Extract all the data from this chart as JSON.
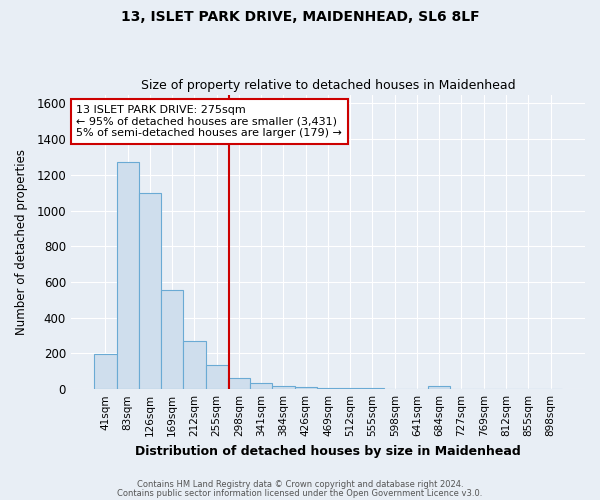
{
  "title1": "13, ISLET PARK DRIVE, MAIDENHEAD, SL6 8LF",
  "title2": "Size of property relative to detached houses in Maidenhead",
  "xlabel": "Distribution of detached houses by size in Maidenhead",
  "ylabel": "Number of detached properties",
  "footer1": "Contains HM Land Registry data © Crown copyright and database right 2024.",
  "footer2": "Contains public sector information licensed under the Open Government Licence v3.0.",
  "bar_labels": [
    "41sqm",
    "83sqm",
    "126sqm",
    "169sqm",
    "212sqm",
    "255sqm",
    "298sqm",
    "341sqm",
    "384sqm",
    "426sqm",
    "469sqm",
    "512sqm",
    "555sqm",
    "598sqm",
    "641sqm",
    "684sqm",
    "727sqm",
    "769sqm",
    "812sqm",
    "855sqm",
    "898sqm"
  ],
  "bar_values": [
    198,
    1270,
    1100,
    555,
    270,
    135,
    60,
    35,
    20,
    10,
    6,
    5,
    5,
    3,
    1,
    20,
    0,
    0,
    0,
    0,
    0
  ],
  "bar_color": "#cfdeed",
  "bar_edge_color": "#6aaad4",
  "bg_color": "#e8eef5",
  "grid_color": "#ffffff",
  "red_line_x": 5.57,
  "annotation_line1": "13 ISLET PARK DRIVE: 275sqm",
  "annotation_line2": "← 95% of detached houses are smaller (3,431)",
  "annotation_line3": "5% of semi-detached houses are larger (179) →",
  "annotation_box_color": "#ffffff",
  "annotation_box_edge": "#cc0000",
  "annotation_text_color": "#000000",
  "ylim": [
    0,
    1650
  ],
  "yticks": [
    0,
    200,
    400,
    600,
    800,
    1000,
    1200,
    1400,
    1600
  ]
}
